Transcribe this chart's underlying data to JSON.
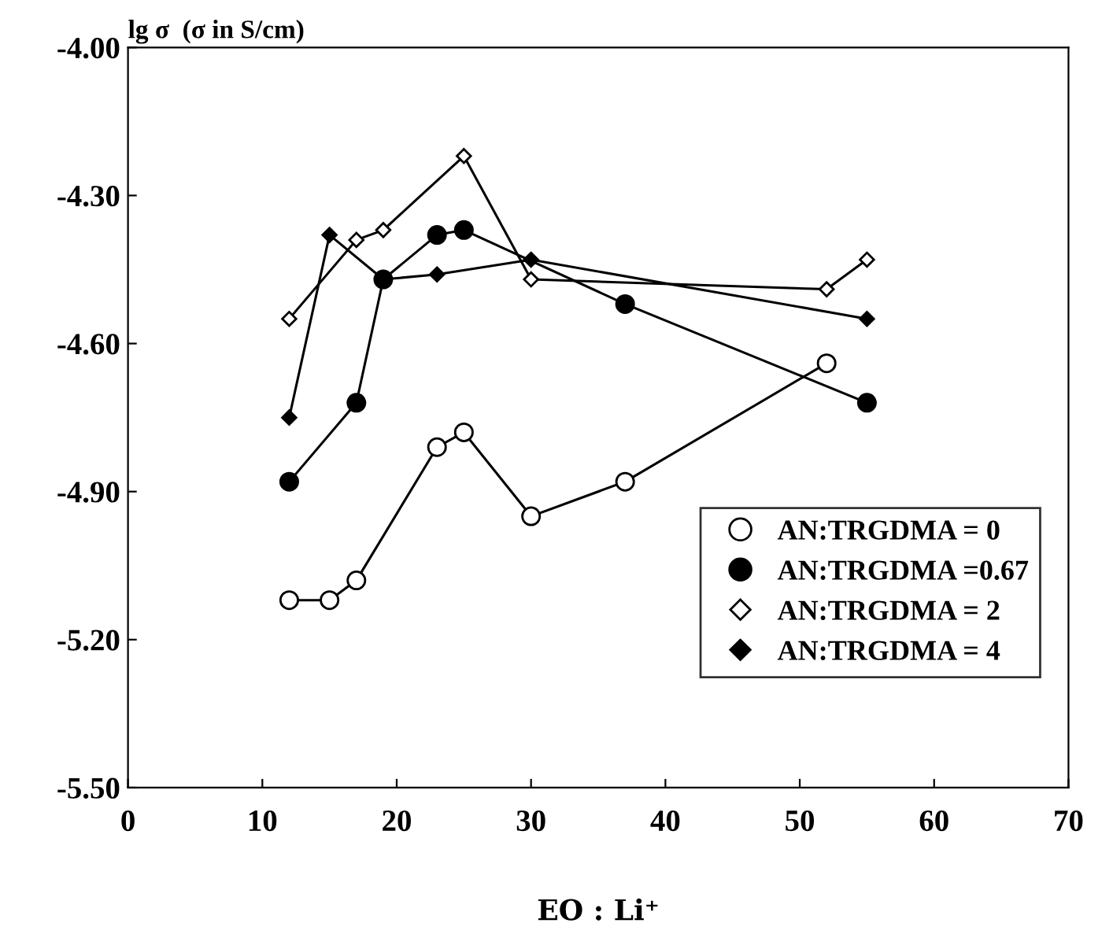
{
  "chart_data": {
    "type": "line",
    "xlabel": "EO : Li⁺",
    "ylabel": "lg σ  (σ in S/cm)",
    "xlim": [
      0,
      70
    ],
    "xticks": [
      0,
      10,
      20,
      30,
      40,
      50,
      60,
      70
    ],
    "ylim": [
      -5.5,
      -4.0
    ],
    "yticks": [
      {
        "value": -5.5,
        "label": "-5.50"
      },
      {
        "value": -5.2,
        "label": "-5.20"
      },
      {
        "value": -4.9,
        "label": "-4.90"
      },
      {
        "value": -4.6,
        "label": "-4.60"
      },
      {
        "value": -4.3,
        "label": "-4.30"
      },
      {
        "value": -4.0,
        "label": "-4.00"
      }
    ],
    "grid": false,
    "legend": "bottom right",
    "series": [
      {
        "name": "AN:TRGDMA = 0",
        "color": "#000000",
        "marker": "circle",
        "x": [
          12,
          15,
          17,
          23,
          25,
          30,
          37,
          52
        ],
        "values": [
          -5.12,
          -5.12,
          -5.08,
          -4.81,
          -4.78,
          -4.95,
          -4.88,
          -4.64
        ]
      },
      {
        "name": "AN:TRGDMA =0.67",
        "color": "#000000",
        "marker": "circle",
        "x": [
          12,
          17,
          19,
          23,
          25,
          37,
          55
        ],
        "values": [
          -4.88,
          -4.72,
          -4.47,
          -4.38,
          -4.37,
          -4.52,
          -4.72
        ]
      },
      {
        "name": "AN:TRGDMA = 2",
        "color": "#000000",
        "marker": "diamond",
        "x": [
          12,
          17,
          19,
          25,
          30,
          52,
          55
        ],
        "values": [
          -4.55,
          -4.39,
          -4.37,
          -4.22,
          -4.47,
          -4.49,
          -4.43
        ]
      },
      {
        "name": "AN:TRGDMA = 4",
        "color": "#000000",
        "marker": "diamond",
        "x": [
          12,
          15,
          19,
          23,
          30,
          55
        ],
        "values": [
          -4.75,
          -4.38,
          -4.47,
          -4.46,
          -4.43,
          -4.55
        ]
      }
    ]
  }
}
